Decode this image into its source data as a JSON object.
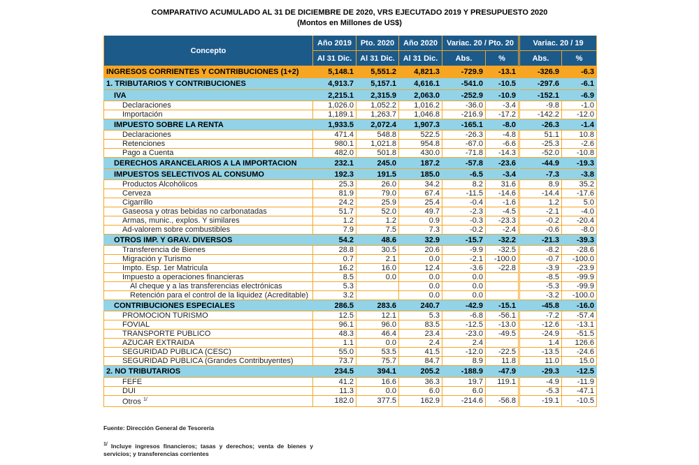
{
  "title": "COMPARATIVO ACUMULADO AL  31 DE DICIEMBRE DE 2020, VRS EJECUTADO  2019 Y PRESUPUESTO 2020",
  "subtitle": "(Montos en Millones de US$)",
  "header": {
    "concepto": "Concepto",
    "y2019": "Año 2019",
    "p2020": "Pto. 2020",
    "y2020": "Año 2020",
    "al31": "Al 31 Dic.",
    "var_pto": "Variac. 20 / Pto. 20",
    "var_19": "Variac. 20 / 19",
    "abs": "Abs.",
    "pct": "%"
  },
  "colors": {
    "header_bg": "#1c5a8a",
    "total_bg": "#f6a623",
    "section_bg": "#92d3e8",
    "border": "#f5a623"
  },
  "rows": [
    {
      "type": "total",
      "label": "INGRESOS CORRIENTES Y CONTRIBUCIONES (1+2)",
      "v": [
        "5,148.1",
        "5,551.2",
        "4,821.3",
        "-729.9",
        "-13.1",
        "-326.9",
        "-6.3"
      ]
    },
    {
      "type": "level1",
      "label": "1. TRIBUTARIOS Y CONTRIBUCIONES",
      "v": [
        "4,913.7",
        "5,157.1",
        "4,616.1",
        "-541.0",
        "-10.5",
        "-297.6",
        "-6.1"
      ]
    },
    {
      "type": "section",
      "label": "IVA",
      "v": [
        "2,215.1",
        "2,315.9",
        "2,063.0",
        "-252.9",
        "-10.9",
        "-152.1",
        "-6.9"
      ]
    },
    {
      "type": "item",
      "label": "Declaraciones",
      "v": [
        "1,026.0",
        "1,052.2",
        "1,016.2",
        "-36.0",
        "-3.4",
        "-9.8",
        "-1.0"
      ]
    },
    {
      "type": "item",
      "label": "Importación",
      "v": [
        "1,189.1",
        "1,263.7",
        "1,046.8",
        "-216.9",
        "-17.2",
        "-142.2",
        "-12.0"
      ]
    },
    {
      "type": "section",
      "label": "IMPUESTO SOBRE LA RENTA",
      "v": [
        "1,933.5",
        "2,072.4",
        "1,907.3",
        "-165.1",
        "-8.0",
        "-26.3",
        "-1.4"
      ]
    },
    {
      "type": "item",
      "label": "Declaraciones",
      "v": [
        "471.4",
        "548.8",
        "522.5",
        "-26.3",
        "-4.8",
        "51.1",
        "10.8"
      ]
    },
    {
      "type": "item",
      "label": "Retenciones",
      "v": [
        "980.1",
        "1,021.8",
        "954.8",
        "-67.0",
        "-6.6",
        "-25.3",
        "-2.6"
      ]
    },
    {
      "type": "item",
      "label": "Pago a Cuenta",
      "v": [
        "482.0",
        "501.8",
        "430.0",
        "-71.8",
        "-14.3",
        "-52.0",
        "-10.8"
      ]
    },
    {
      "type": "section",
      "label": "DERECHOS ARANCELARIOS A LA IMPORTACION",
      "v": [
        "232.1",
        "245.0",
        "187.2",
        "-57.8",
        "-23.6",
        "-44.9",
        "-19.3"
      ]
    },
    {
      "type": "section",
      "label": "IMPUESTOS SELECTIVOS AL CONSUMO",
      "v": [
        "192.3",
        "191.5",
        "185.0",
        "-6.5",
        "-3.4",
        "-7.3",
        "-3.8"
      ]
    },
    {
      "type": "item",
      "label": "Productos Alcohólicos",
      "v": [
        "25.3",
        "26.0",
        "34.2",
        "8.2",
        "31.6",
        "8.9",
        "35.2"
      ]
    },
    {
      "type": "item",
      "label": "Cerveza",
      "v": [
        "81.9",
        "79.0",
        "67.4",
        "-11.5",
        "-14.6",
        "-14.4",
        "-17.6"
      ]
    },
    {
      "type": "item",
      "label": "Cigarrillo",
      "v": [
        "24.2",
        "25.9",
        "25.4",
        "-0.4",
        "-1.6",
        "1.2",
        "5.0"
      ]
    },
    {
      "type": "item",
      "label": "Gaseosa y otras bebidas no carbonatadas",
      "v": [
        "51.7",
        "52.0",
        "49.7",
        "-2.3",
        "-4.5",
        "-2.1",
        "-4.0"
      ]
    },
    {
      "type": "item",
      "label": "Armas, munic., explos. Y similares",
      "v": [
        "1.2",
        "1.2",
        "0.9",
        "-0.3",
        "-23.3",
        "-0.2",
        "-20.4"
      ]
    },
    {
      "type": "item",
      "label": "Ad-valorem sobre combustibles",
      "v": [
        "7.9",
        "7.5",
        "7.3",
        "-0.2",
        "-2.4",
        "-0.6",
        "-8.0"
      ]
    },
    {
      "type": "section",
      "label": "OTROS IMP. Y GRAV. DIVERSOS",
      "v": [
        "54.2",
        "48.6",
        "32.9",
        "-15.7",
        "-32.2",
        "-21.3",
        "-39.3"
      ]
    },
    {
      "type": "item",
      "label": "Transferencia de Bienes",
      "v": [
        "28.8",
        "30.5",
        "20.6",
        "-9.9",
        "-32.5",
        "-8.2",
        "-28.6"
      ]
    },
    {
      "type": "item",
      "label": "Migración y Turismo",
      "v": [
        "0.7",
        "2.1",
        "0.0",
        "-2.1",
        "-100.0",
        "-0.7",
        "-100.0"
      ]
    },
    {
      "type": "item",
      "label": "Impto. Esp. 1er Matricula",
      "v": [
        "16.2",
        "16.0",
        "12.4",
        "-3.6",
        "-22.8",
        "-3.9",
        "-23.9"
      ]
    },
    {
      "type": "item",
      "label": "Impuesto a operaciones financieras",
      "v": [
        "8.5",
        "0.0",
        "0.0",
        "0.0",
        "",
        "-8.5",
        "-99.9"
      ]
    },
    {
      "type": "subitem",
      "label": "Al cheque y a las transferencias electrónicas",
      "v": [
        "5.3",
        "",
        "0.0",
        "0.0",
        "",
        "-5.3",
        "-99.9"
      ]
    },
    {
      "type": "subitem",
      "label": "Retención para el control de la liquidez (Acreditable)",
      "v": [
        "3.2",
        "",
        "0.0",
        "0.0",
        "",
        "-3.2",
        "-100.0"
      ]
    },
    {
      "type": "section",
      "label": "CONTRIBUCIONES ESPECIALES",
      "v": [
        "286.5",
        "283.6",
        "240.7",
        "-42.9",
        "-15.1",
        "-45.8",
        "-16.0"
      ]
    },
    {
      "type": "item",
      "label": "PROMOCION TURISMO",
      "v": [
        "12.5",
        "12.1",
        "5.3",
        "-6.8",
        "-56.1",
        "-7.2",
        "-57.4"
      ]
    },
    {
      "type": "item",
      "label": "FOVIAL",
      "v": [
        "96.1",
        "96.0",
        "83.5",
        "-12.5",
        "-13.0",
        "-12.6",
        "-13.1"
      ]
    },
    {
      "type": "item",
      "label": "TRANSPORTE PUBLICO",
      "v": [
        "48.3",
        "46.4",
        "23.4",
        "-23.0",
        "-49.5",
        "-24.9",
        "-51.5"
      ]
    },
    {
      "type": "item",
      "label": "AZUCAR EXTRAIDA",
      "v": [
        "1.1",
        "0.0",
        "2.4",
        "2.4",
        "",
        "1.4",
        "126.6"
      ]
    },
    {
      "type": "item",
      "label": "SEGURIDAD PUBLICA (CESC)",
      "v": [
        "55.0",
        "53.5",
        "41.5",
        "-12.0",
        "-22.5",
        "-13.5",
        "-24.6"
      ]
    },
    {
      "type": "item",
      "label": "SEGURIDAD PUBLICA (Grandes Contribuyentes)",
      "v": [
        "73.7",
        "75.7",
        "84.7",
        "8.9",
        "11.8",
        "11.0",
        "15.0"
      ]
    },
    {
      "type": "level1",
      "label": "2. NO TRIBUTARIOS",
      "v": [
        "234.5",
        "394.1",
        "205.2",
        "-188.9",
        "-47.9",
        "-29.3",
        "-12.5"
      ]
    },
    {
      "type": "item",
      "label": "FEFE",
      "v": [
        "41.2",
        "16.6",
        "36.3",
        "19.7",
        "119.1",
        "-4.9",
        "-11.9"
      ]
    },
    {
      "type": "item",
      "label": "DUI",
      "v": [
        "11.3",
        "0.0",
        "6.0",
        "6.0",
        "",
        "-5.3",
        "-47.1"
      ]
    },
    {
      "type": "item",
      "label": "Otros",
      "note": "1/",
      "v": [
        "182.0",
        "377.5",
        "162.9",
        "-214.6",
        "-56.8",
        "-19.1",
        "-10.5"
      ]
    }
  ],
  "footer": {
    "source": "Fuente: Dirección General de Tesorería",
    "note_mark": "1/",
    "note": " Incluye ingresos financieros; tasas y derechos; venta de bienes y servicios; y transferencias corrientes"
  }
}
